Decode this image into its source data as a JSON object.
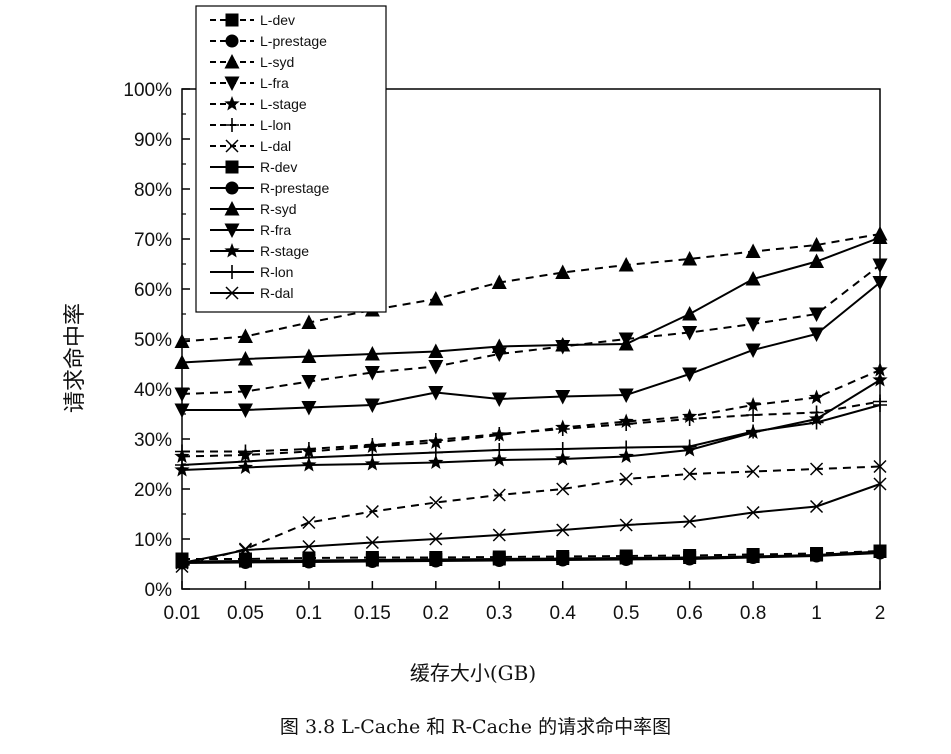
{
  "caption": "图 3.8 L-Cache 和 R-Cache 的请求命中率图",
  "colors": {
    "line": "#000000",
    "background": "#ffffff"
  },
  "chart_data": {
    "type": "line",
    "title": "",
    "xlabel": "缓存大小(GB)",
    "ylabel": "请求命中率",
    "categories": [
      "0.01",
      "0.05",
      "0.1",
      "0.15",
      "0.2",
      "0.3",
      "0.4",
      "0.5",
      "0.6",
      "0.8",
      "1",
      "2"
    ],
    "ylim": [
      0,
      100
    ],
    "yticks": [
      "0%",
      "10%",
      "20%",
      "30%",
      "40%",
      "50%",
      "60%",
      "70%",
      "80%",
      "90%",
      "100%"
    ],
    "legend_position": "top-left",
    "series": [
      {
        "name": "L-dev",
        "style": "dashed",
        "marker": "square",
        "values": [
          6.0,
          6.0,
          6.2,
          6.3,
          6.3,
          6.4,
          6.5,
          6.6,
          6.7,
          6.9,
          7.1,
          7.6
        ]
      },
      {
        "name": "L-prestage",
        "style": "dashed",
        "marker": "circle",
        "values": [
          5.4,
          5.5,
          5.6,
          5.7,
          5.8,
          5.9,
          6.0,
          6.1,
          6.2,
          6.5,
          6.7,
          7.4
        ]
      },
      {
        "name": "L-syd",
        "style": "dashed",
        "marker": "triangle-up",
        "values": [
          49.5,
          50.5,
          53.3,
          55.8,
          58.0,
          61.3,
          63.3,
          64.8,
          66.0,
          67.5,
          68.8,
          71.0
        ]
      },
      {
        "name": "L-fra",
        "style": "dashed",
        "marker": "triangle-down",
        "values": [
          39.0,
          39.5,
          41.5,
          43.3,
          44.5,
          47.0,
          48.5,
          50.0,
          51.3,
          53.0,
          55.0,
          64.8
        ]
      },
      {
        "name": "L-stage",
        "style": "dashed",
        "marker": "star",
        "values": [
          26.5,
          26.8,
          27.5,
          28.5,
          29.3,
          30.8,
          32.3,
          33.5,
          34.5,
          36.8,
          38.3,
          43.8
        ]
      },
      {
        "name": "L-lon",
        "style": "dashed",
        "marker": "plus",
        "values": [
          27.5,
          27.5,
          28.0,
          28.8,
          29.8,
          31.0,
          32.0,
          33.0,
          34.0,
          34.8,
          35.3,
          37.5
        ]
      },
      {
        "name": "L-dal",
        "style": "dashed",
        "marker": "x",
        "values": [
          4.5,
          8.0,
          13.3,
          15.5,
          17.3,
          18.8,
          20.0,
          22.0,
          23.0,
          23.5,
          24.0,
          24.5
        ]
      },
      {
        "name": "R-dev",
        "style": "solid",
        "marker": "square",
        "values": [
          5.5,
          5.6,
          5.7,
          5.8,
          5.9,
          6.0,
          6.1,
          6.2,
          6.3,
          6.5,
          6.8,
          7.5
        ]
      },
      {
        "name": "R-prestage",
        "style": "solid",
        "marker": "circle",
        "values": [
          5.2,
          5.3,
          5.4,
          5.5,
          5.6,
          5.7,
          5.8,
          5.9,
          6.0,
          6.3,
          6.6,
          7.2
        ]
      },
      {
        "name": "R-syd",
        "style": "solid",
        "marker": "triangle-up",
        "values": [
          45.3,
          46.0,
          46.5,
          47.0,
          47.5,
          48.5,
          48.8,
          49.0,
          55.0,
          62.0,
          65.5,
          70.3
        ]
      },
      {
        "name": "R-fra",
        "style": "solid",
        "marker": "triangle-down",
        "values": [
          35.8,
          35.8,
          36.3,
          36.8,
          39.3,
          38.0,
          38.5,
          38.8,
          43.0,
          47.8,
          51.0,
          61.3
        ]
      },
      {
        "name": "R-stage",
        "style": "solid",
        "marker": "star",
        "values": [
          23.8,
          24.3,
          24.8,
          25.0,
          25.3,
          25.8,
          26.0,
          26.5,
          27.8,
          31.3,
          34.0,
          41.8
        ]
      },
      {
        "name": "R-lon",
        "style": "solid",
        "marker": "plus",
        "values": [
          24.8,
          25.5,
          26.3,
          26.8,
          27.3,
          27.8,
          28.0,
          28.3,
          28.5,
          31.5,
          33.3,
          36.8
        ]
      },
      {
        "name": "R-dal",
        "style": "solid",
        "marker": "x",
        "values": [
          5.2,
          7.8,
          8.5,
          9.3,
          10.0,
          10.8,
          11.8,
          12.8,
          13.5,
          15.3,
          16.5,
          21.0
        ]
      }
    ]
  }
}
